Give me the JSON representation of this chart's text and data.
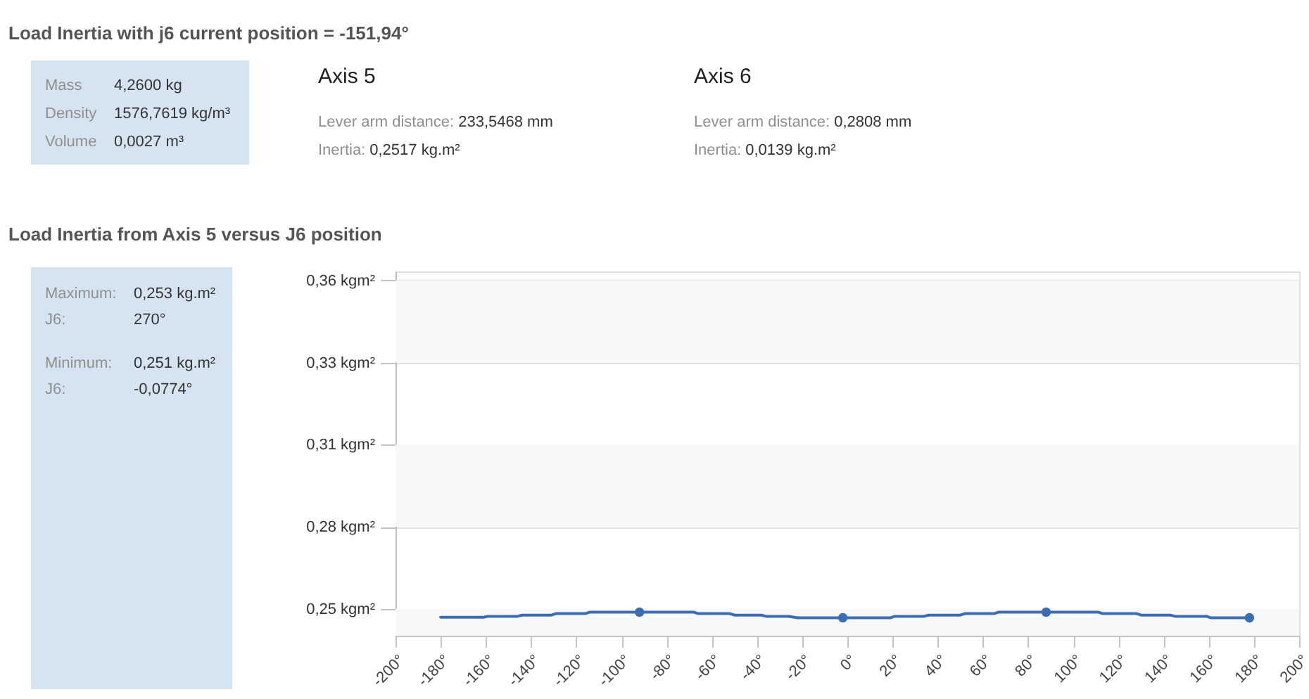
{
  "chart_data": [
    {
      "type": "other",
      "title": "Load Inertia with j6 current position = -151,94°",
      "annotations": [
        "Mass",
        "4,2600 kg",
        "Density",
        "1576,7619 kg/m³",
        "Volume",
        "0,0027 m³"
      ]
    },
    {
      "type": "other",
      "title": "Axis 5",
      "annotations": [
        "Lever arm distance:",
        "233,5468 mm",
        "Inertia:",
        "0,2517 kg.m²"
      ]
    },
    {
      "type": "other",
      "title": "Axis 6",
      "annotations": [
        "Lever arm distance:",
        "0,2808 mm",
        "Inertia:",
        "0,0139 kg.m²"
      ]
    },
    {
      "type": "other",
      "annotations": [
        "Maximum:",
        "0,253 kg.m²",
        "J6:",
        "270°",
        "Minimum:",
        "0,251 kg.m²",
        "J6:",
        "-0,0774°"
      ]
    },
    {
      "type": "line",
      "title": "Load Inertia from Axis 5 versus J6 position",
      "series": [
        {
          "type": "line",
          "color": "#3b6db4",
          "x": [
            -180,
            -161,
            -159,
            -146,
            -144,
            -131,
            -129,
            -116,
            -114,
            -68,
            -66,
            -52,
            -50,
            -38,
            -36,
            -26,
            -22,
            19,
            21,
            34,
            36,
            50,
            52,
            65,
            67,
            111,
            113,
            128,
            130,
            143,
            145,
            159,
            161,
            178
          ],
          "values": [
            0.2472,
            0.2472,
            0.2475,
            0.2475,
            0.2479,
            0.2479,
            0.2484,
            0.2484,
            0.2489,
            0.2489,
            0.2484,
            0.2484,
            0.2479,
            0.2479,
            0.2475,
            0.2475,
            0.247,
            0.247,
            0.2475,
            0.2475,
            0.2479,
            0.2479,
            0.2484,
            0.2484,
            0.2489,
            0.2489,
            0.2484,
            0.2484,
            0.2479,
            0.2479,
            0.2475,
            0.2475,
            0.247,
            0.247
          ]
        },
        {
          "type": "scatter",
          "color": "#3b6db4",
          "marker": "circle",
          "x": [
            -92,
            -2,
            88,
            178
          ],
          "values": [
            0.2489,
            0.247,
            0.2489,
            0.247
          ]
        }
      ],
      "xlim": [
        -200,
        200
      ],
      "xticks": [
        {
          "value": -200,
          "label": "-200°"
        },
        {
          "value": -180,
          "label": "-180°"
        },
        {
          "value": -160,
          "label": "-160°"
        },
        {
          "value": -140,
          "label": "-140°"
        },
        {
          "value": -120,
          "label": "-120°"
        },
        {
          "value": -100,
          "label": "-100°"
        },
        {
          "value": -80,
          "label": "-80°"
        },
        {
          "value": -60,
          "label": "-60°"
        },
        {
          "value": -40,
          "label": "-40°"
        },
        {
          "value": -20,
          "label": "-20°"
        },
        {
          "value": 0,
          "label": "0°"
        },
        {
          "value": 20,
          "label": "20°"
        },
        {
          "value": 40,
          "label": "40°"
        },
        {
          "value": 60,
          "label": "60°"
        },
        {
          "value": 80,
          "label": "80°"
        },
        {
          "value": 100,
          "label": "100°"
        },
        {
          "value": 120,
          "label": "120°"
        },
        {
          "value": 140,
          "label": "140°"
        },
        {
          "value": 160,
          "label": "160°"
        },
        {
          "value": 180,
          "label": "180°"
        },
        {
          "value": 200,
          "label": "200°"
        }
      ],
      "ylim": [
        0.241,
        0.363
      ],
      "yticks": [
        {
          "value": 0.25,
          "label": "0,25 kgm²"
        },
        {
          "value": 0.2775,
          "label": "0,28 kgm²"
        },
        {
          "value": 0.305,
          "label": "0,31 kgm²"
        },
        {
          "value": 0.3325,
          "label": "0,33 kgm²"
        },
        {
          "value": 0.36,
          "label": "0,36 kgm²"
        }
      ],
      "grid": "y",
      "bands": [
        {
          "axis": "y",
          "from": 0.3325,
          "to": 0.36,
          "color": "#f8f8f8"
        },
        {
          "axis": "y",
          "from": 0.2775,
          "to": 0.305,
          "color": "#f8f8f8"
        },
        {
          "axis": "y",
          "from": 0.241,
          "to": 0.25,
          "color": "#f8f8f8"
        }
      ]
    }
  ]
}
